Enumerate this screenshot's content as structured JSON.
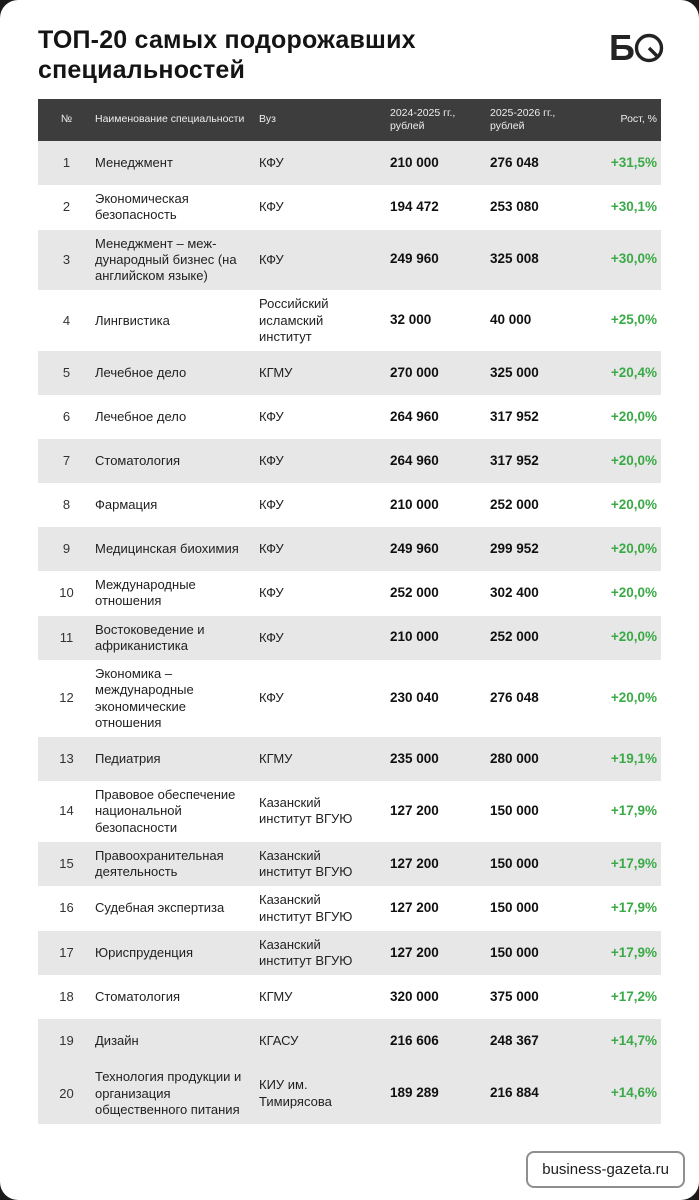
{
  "header": {
    "title": "ТОП-20 самых подорожавших специальностей",
    "logo": {
      "letter": "Б"
    }
  },
  "footer": {
    "source": "business-gazeta.ru"
  },
  "colors": {
    "growth_green": "#3aaa46",
    "header_row_bg": "#3d3d3d",
    "row_shade": "#e7e7e7",
    "outer_frame": "#1a1a1a"
  },
  "chart_data": {
    "type": "table",
    "title": "ТОП-20 самых подорожавших специальностей",
    "columns": [
      "№",
      "Наименование специальности",
      "Вуз",
      "2024-2025 гг., рублей",
      "2025-2026 гг., рублей",
      "Рост, %"
    ],
    "rows": [
      {
        "num": "1",
        "specialty": "Менеджмент",
        "university": "КФУ",
        "price_2024_2025": "210 000",
        "price_2025_2026": "276 048",
        "growth": "+31,5%"
      },
      {
        "num": "2",
        "specialty": "Экономическая безопасность",
        "university": "КФУ",
        "price_2024_2025": "194 472",
        "price_2025_2026": "253 080",
        "growth": "+30,1%"
      },
      {
        "num": "3",
        "specialty": "Менеджмент – меж­дународный бизнес (на английском языке)",
        "university": "КФУ",
        "price_2024_2025": "249 960",
        "price_2025_2026": "325 008",
        "growth": "+30,0%"
      },
      {
        "num": "4",
        "specialty": "Лингвистика",
        "university": "Российский\nисламский\nинститут",
        "price_2024_2025": "32 000",
        "price_2025_2026": "40 000",
        "growth": "+25,0%"
      },
      {
        "num": "5",
        "specialty": "Лечебное дело",
        "university": "КГМУ",
        "price_2024_2025": "270 000",
        "price_2025_2026": "325 000",
        "growth": "+20,4%"
      },
      {
        "num": "6",
        "specialty": "Лечебное дело",
        "university": "КФУ",
        "price_2024_2025": "264 960",
        "price_2025_2026": "317 952",
        "growth": "+20,0%"
      },
      {
        "num": "7",
        "specialty": "Стоматология",
        "university": "КФУ",
        "price_2024_2025": "264 960",
        "price_2025_2026": "317 952",
        "growth": "+20,0%"
      },
      {
        "num": "8",
        "specialty": "Фармация",
        "university": "КФУ",
        "price_2024_2025": "210 000",
        "price_2025_2026": "252 000",
        "growth": "+20,0%"
      },
      {
        "num": "9",
        "specialty": "Медицинская биохимия",
        "university": "КФУ",
        "price_2024_2025": "249 960",
        "price_2025_2026": "299 952",
        "growth": "+20,0%"
      },
      {
        "num": "10",
        "specialty": "Международные отношения",
        "university": "КФУ",
        "price_2024_2025": "252 000",
        "price_2025_2026": "302 400",
        "growth": "+20,0%"
      },
      {
        "num": "11",
        "specialty": "Востоковедение и африканистика",
        "university": "КФУ",
        "price_2024_2025": "210 000",
        "price_2025_2026": "252 000",
        "growth": "+20,0%"
      },
      {
        "num": "12",
        "specialty": "Экономика – международные экономические отношения",
        "university": "КФУ",
        "price_2024_2025": "230 040",
        "price_2025_2026": "276 048",
        "growth": "+20,0%"
      },
      {
        "num": "13",
        "specialty": "Педиатрия",
        "university": "КГМУ",
        "price_2024_2025": "235 000",
        "price_2025_2026": "280 000",
        "growth": "+19,1%"
      },
      {
        "num": "14",
        "specialty": "Правовое обеспече­ние национальной безопасности",
        "university": "Казанский\nинститут ВГУЮ",
        "price_2024_2025": "127 200",
        "price_2025_2026": "150 000",
        "growth": "+17,9%"
      },
      {
        "num": "15",
        "specialty": "Правоохранительная деятельность",
        "university": "Казанский\nинститут ВГУЮ",
        "price_2024_2025": "127 200",
        "price_2025_2026": "150 000",
        "growth": "+17,9%"
      },
      {
        "num": "16",
        "specialty": "Судебная экспертиза",
        "university": "Казанский\nинститут ВГУЮ",
        "price_2024_2025": "127 200",
        "price_2025_2026": "150 000",
        "growth": "+17,9%"
      },
      {
        "num": "17",
        "specialty": "Юриспруденция",
        "university": "Казанский\nинститут ВГУЮ",
        "price_2024_2025": "127 200",
        "price_2025_2026": "150 000",
        "growth": "+17,9%"
      },
      {
        "num": "18",
        "specialty": "Стоматология",
        "university": "КГМУ",
        "price_2024_2025": "320 000",
        "price_2025_2026": "375 000",
        "growth": "+17,2%"
      },
      {
        "num": "19",
        "specialty": "Дизайн",
        "university": "КГАСУ",
        "price_2024_2025": "216 606",
        "price_2025_2026": "248 367",
        "growth": "+14,7%"
      },
      {
        "num": "20",
        "specialty": "Технология продук­ции и организация общественного пита­ния",
        "university": "КИУ им.\nТимирясова",
        "price_2024_2025": "189 289",
        "price_2025_2026": "216 884",
        "growth": "+14,6%"
      }
    ]
  }
}
